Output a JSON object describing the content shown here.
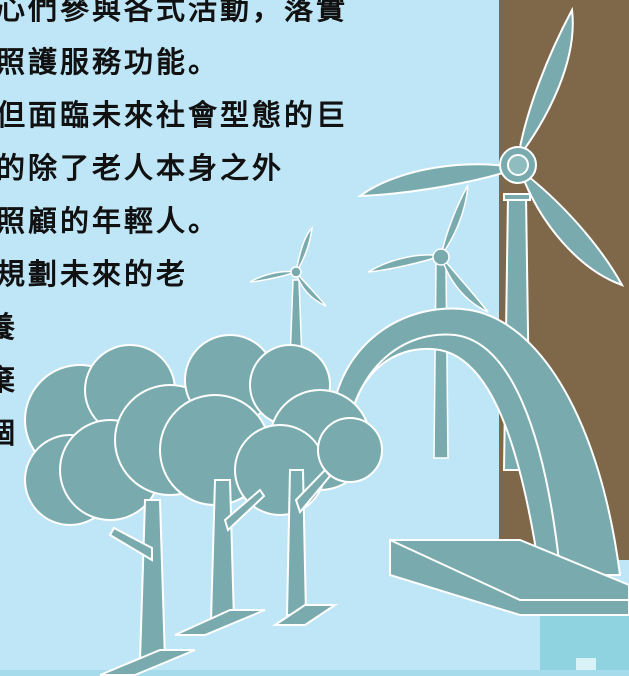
{
  "text_lines": [
    "心們參與各式活動，落實",
    "照護服務功能。",
    "但面臨未來社會型態的巨",
    "的除了老人本身之外",
    "照顧的年輕人。",
    "規劃未來的老",
    "養",
    "棄",
    "個"
  ],
  "colors": {
    "sky": "#bfe6f7",
    "teal": "#79abae",
    "brown": "#7f6749",
    "outline": "#ffffff",
    "water": "#8fd3e0"
  }
}
